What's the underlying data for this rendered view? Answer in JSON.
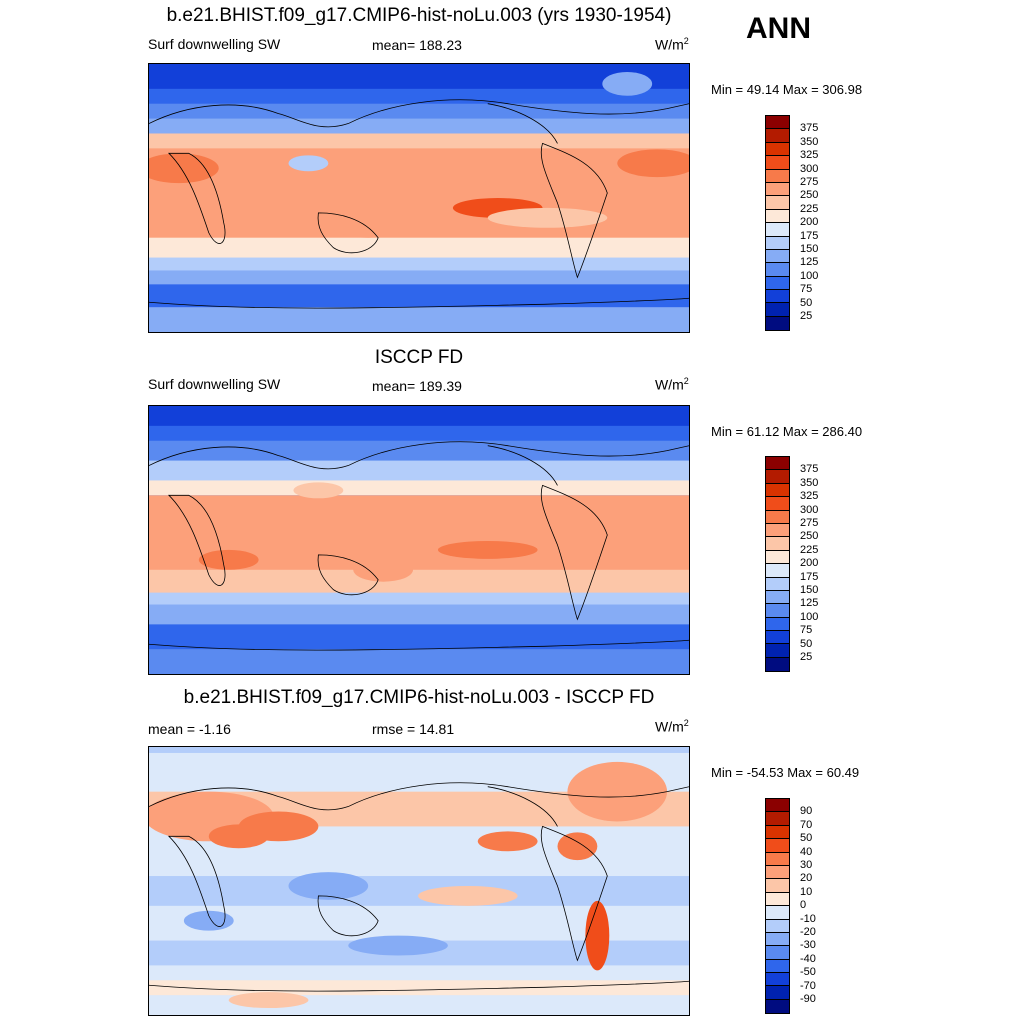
{
  "season": "ANN",
  "panels": [
    {
      "title": "b.e21.BHIST.f09_g17.CMIP6-hist-noLu.003 (yrs 1930-1954)",
      "left_label": "Surf downwelling SW",
      "center_label": "mean= 188.23",
      "units": "W/m",
      "units_sup": "2",
      "minmax": "Min =  49.14 Max = 306.98",
      "colorbar_ticks": [
        "375",
        "350",
        "325",
        "300",
        "275",
        "250",
        "225",
        "200",
        "175",
        "150",
        "125",
        "100",
        "75",
        "50",
        "25"
      ]
    },
    {
      "title": "ISCCP FD",
      "left_label": "Surf downwelling SW",
      "center_label": "mean= 189.39",
      "units": "W/m",
      "units_sup": "2",
      "minmax": "Min =  61.12 Max = 286.40",
      "colorbar_ticks": [
        "375",
        "350",
        "325",
        "300",
        "275",
        "250",
        "225",
        "200",
        "175",
        "150",
        "125",
        "100",
        "75",
        "50",
        "25"
      ]
    },
    {
      "title": "b.e21.BHIST.f09_g17.CMIP6-hist-noLu.003 - ISCCP FD",
      "left_label": "mean =  -1.16",
      "center_label": "rmse =  14.81",
      "units": "W/m",
      "units_sup": "2",
      "minmax": "Min = -54.53 Max =  60.49",
      "colorbar_ticks": [
        "90",
        "70",
        "50",
        "40",
        "30",
        "20",
        "10",
        "0",
        "-10",
        "-20",
        "-30",
        "-40",
        "-50",
        "-70",
        "-90"
      ]
    }
  ],
  "colorbar_colors": [
    "#8b0000",
    "#b31b00",
    "#d93300",
    "#f04d1a",
    "#f77a4a",
    "#fca07a",
    "#fcc6a8",
    "#fde8d8",
    "#dce9fa",
    "#b3cdfa",
    "#86acf5",
    "#5a8af0",
    "#2f66ec",
    "#1240d9",
    "#0022b0",
    "#000c80"
  ]
}
